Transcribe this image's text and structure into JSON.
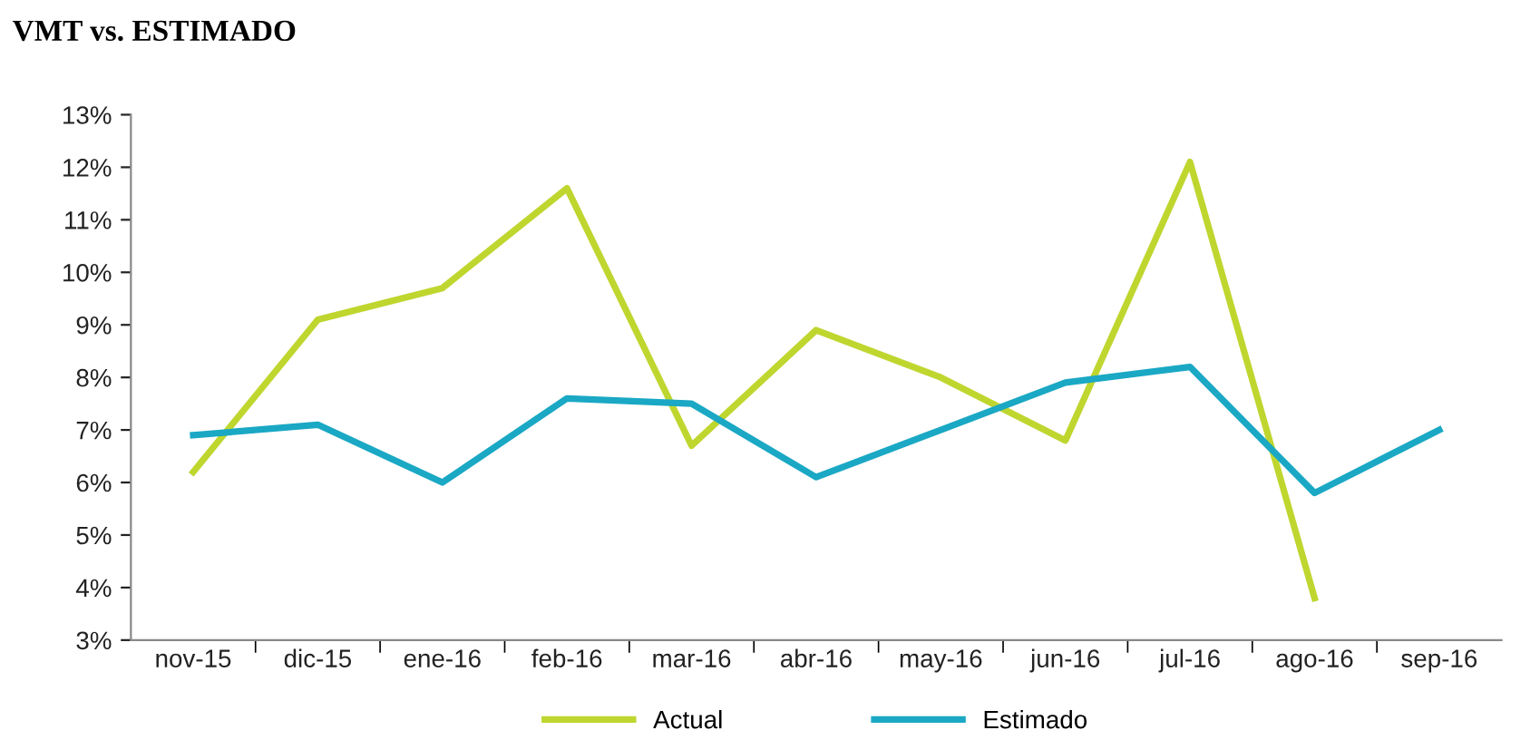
{
  "chart_data": {
    "type": "line",
    "title": "VMT vs. ESTIMADO",
    "categories": [
      "nov-15",
      "dic-15",
      "ene-16",
      "feb-16",
      "mar-16",
      "abr-16",
      "may-16",
      "jun-16",
      "jul-16",
      "ago-16",
      "sep-16"
    ],
    "series": [
      {
        "name": "Actual",
        "color": "#bfd62f",
        "values": [
          6.2,
          9.1,
          9.7,
          11.6,
          6.7,
          8.9,
          8.0,
          6.8,
          12.1,
          3.8,
          null
        ]
      },
      {
        "name": "Estimado",
        "color": "#1aa8c4",
        "values": [
          6.9,
          7.1,
          6.0,
          7.6,
          7.5,
          6.1,
          7.0,
          7.9,
          8.2,
          5.8,
          7.0
        ]
      }
    ],
    "ylim": [
      3,
      13
    ],
    "yticks": [
      {
        "value": 3,
        "label": "3%"
      },
      {
        "value": 4,
        "label": "4%"
      },
      {
        "value": 5,
        "label": "5%"
      },
      {
        "value": 6,
        "label": "6%"
      },
      {
        "value": 7,
        "label": "7%"
      },
      {
        "value": 8,
        "label": "8%"
      },
      {
        "value": 9,
        "label": "9%"
      },
      {
        "value": 10,
        "label": "10%"
      },
      {
        "value": 11,
        "label": "11%"
      },
      {
        "value": 12,
        "label": "12%"
      },
      {
        "value": 13,
        "label": "13%"
      }
    ],
    "grid": false,
    "legend": "bottom",
    "marker": "none",
    "line_style": "solid"
  }
}
